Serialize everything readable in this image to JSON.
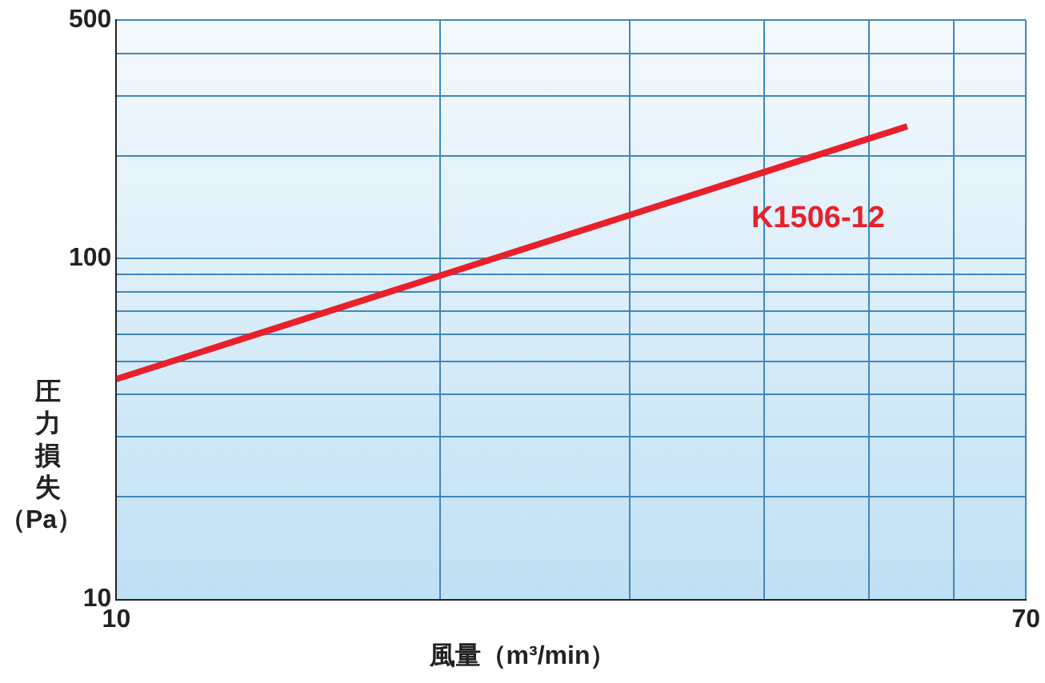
{
  "chart_data": {
    "type": "line",
    "xlabel": "風量（m³/min）",
    "ylabel": "圧力損失（Pa）",
    "x": [
      10,
      54.3
    ],
    "series": [
      {
        "name": "K1506-12",
        "color": "#e8202a",
        "values": [
          44.3,
          244
        ]
      }
    ],
    "log": "xy",
    "xlim": [
      10,
      70
    ],
    "ylim": [
      10,
      500
    ],
    "xticks": [
      10,
      {
        "value": 20,
        "label": null
      },
      {
        "value": 30,
        "label": null
      },
      {
        "value": 40,
        "label": null
      },
      {
        "value": 50,
        "label": null
      },
      {
        "value": 60,
        "label": null
      },
      70
    ],
    "yticks": [
      10,
      {
        "value": 20,
        "label": null
      },
      {
        "value": 30,
        "label": null
      },
      {
        "value": 40,
        "label": null
      },
      {
        "value": 50,
        "label": null
      },
      {
        "value": 60,
        "label": null
      },
      {
        "value": 70,
        "label": null
      },
      {
        "value": 80,
        "label": null
      },
      {
        "value": 90,
        "label": null
      },
      100,
      {
        "value": 200,
        "label": null
      },
      {
        "value": 300,
        "label": null
      },
      {
        "value": 400,
        "label": null
      },
      500
    ],
    "grid": true,
    "legend": false,
    "marker": "none",
    "line_style": "solid"
  }
}
